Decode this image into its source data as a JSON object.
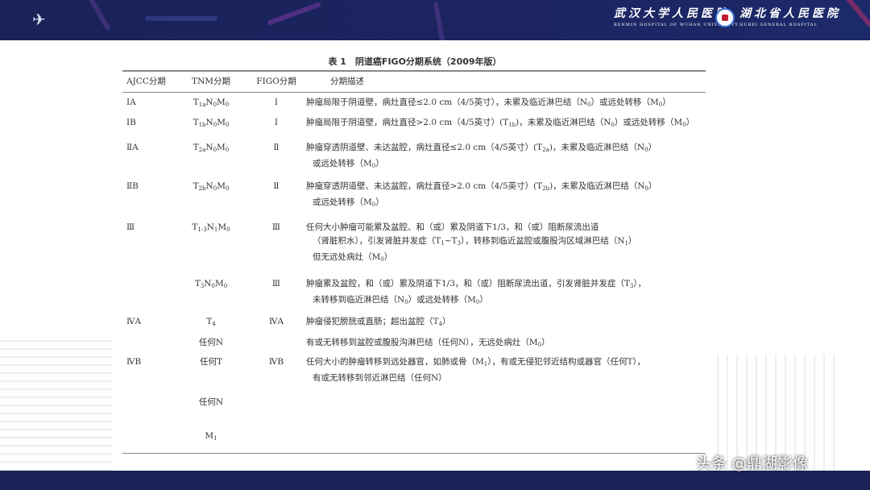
{
  "header": {
    "left_logo_icon": "crane-icon",
    "hospital1_cn": "武汉大学人民医院",
    "hospital1_en": "RENMIN HOSPITAL OF WUHAN UNIVERSITY",
    "hospital2_cn": "湖北省人民医院",
    "hospital2_en": "HUBEI GENERAL HOSPITAL",
    "bar_color": "#1a2257"
  },
  "table": {
    "caption": "表 1　阴道癌FIGO分期系统（2009年版）",
    "headers": [
      "AJCC分期",
      "TNM分期",
      "FIGO分期",
      "分期描述"
    ],
    "rows": [
      {
        "ajcc": "ⅠA",
        "tnm": "T_{1a}N_{0}M_{0}",
        "figo": "Ⅰ",
        "desc": [
          "肿瘤局限于阴道壁，病灶直径≤2.0 cm（4/5英寸），未累及临近淋巴结（N_{0}）或远处转移（M_{0}）"
        ]
      },
      {
        "ajcc": "ⅠB",
        "tnm": "T_{1b}N_{0}M_{0}",
        "figo": "Ⅰ",
        "desc": [
          "肿瘤局限于阴道壁，病灶直径>2.0 cm（4/5英寸）(T_{1b})，未累及临近淋巴结（N_{0}）或远处转移（M_{0}）"
        ]
      },
      {
        "ajcc": "ⅡA",
        "tnm": "T_{2a}N_{0}M_{0}",
        "figo": "Ⅱ",
        "desc": [
          "肿瘤穿透阴道壁、未达盆腔，病灶直径≤2.0 cm（4/5英寸）(T_{2a})，未累及临近淋巴结（N_{0}）",
          "或远处转移（M_{0}）"
        ]
      },
      {
        "ajcc": "ⅡB",
        "tnm": "T_{2b}N_{0}M_{0}",
        "figo": "Ⅱ",
        "desc": [
          "肿瘤穿透阴道壁、未达盆腔，病灶直径>2.0 cm（4/5英寸）(T_{2b})，未累及临近淋巴结（N_{0}）",
          "或远处转移（M_{0}）"
        ]
      },
      {
        "ajcc": "Ⅲ",
        "tnm": "T_{1-3}N_{1}M_{0}",
        "figo": "Ⅲ",
        "desc": [
          "任何大小肿瘤可能累及盆腔、和（或）累及阴道下1/3，和（或）阻断尿流出道",
          "（肾脏积水），引发肾脏并发症（T_{1}~T_{3}），转移到临近盆腔或腹股沟区域淋巴结（N_{1}）",
          "但无远处病灶（M_{0}）"
        ]
      },
      {
        "ajcc": "",
        "tnm": "T_{3}N_{0}M_{0}",
        "figo": "Ⅲ",
        "desc": [
          "肿瘤累及盆腔，和（或）累及阴道下1/3，和（或）阻断尿流出道，引发肾脏并发症（T_{3}），",
          "未转移到临近淋巴结（N_{0}）或远处转移（M_{0}）"
        ]
      },
      {
        "ajcc": "ⅣA",
        "tnm": "T_{4}",
        "figo": "ⅣA",
        "desc": [
          "肿瘤侵犯膀胱或直肠；超出盆腔（T_{4}）"
        ]
      },
      {
        "ajcc": "",
        "tnm": "任何N",
        "figo": "",
        "desc": [
          "有或无转移到盆腔或腹股沟淋巴结（任何N），无远处病灶（M_{0}）"
        ]
      },
      {
        "ajcc": "ⅣB",
        "tnm": "任何T",
        "figo": "ⅣB",
        "desc": [
          "任何大小的肿瘤转移到远处器官，如肺或骨（M_{1}），有或无侵犯邻近结构或器官（任何T），",
          "有或无转移到邻近淋巴结（任何N）"
        ]
      },
      {
        "ajcc": "",
        "tnm": "任何N",
        "figo": "",
        "desc": []
      },
      {
        "ajcc": "",
        "tnm": "M_{1}",
        "figo": "",
        "desc": []
      }
    ]
  },
  "watermark": "头条 @鼎湖影像"
}
